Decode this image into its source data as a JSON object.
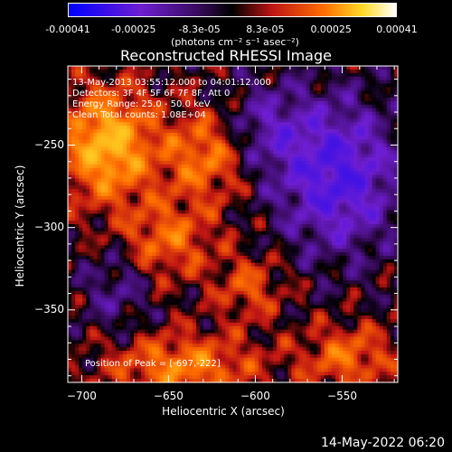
{
  "colorbar": {
    "tick_labels": [
      "-0.00041",
      "-0.00025",
      "-8.3e-05",
      "8.3e-05",
      "0.00025",
      "0.00041"
    ],
    "units": "(photons cm⁻² s⁻¹ asec⁻²)",
    "range": [
      -0.00041,
      0.00041
    ]
  },
  "annotations": {
    "line1": "13-May-2013 03:55:12.000 to 04:01:12.000",
    "line2": "Detectors: 3F 4F 5F 6F 7F 8F, Att 0",
    "line3": "Energy Range: 25.0 - 50.0 keV",
    "line4": "Clean    Total counts: 1.08E+04",
    "peak": "Position of Peak = [-697,-222]"
  },
  "footer": "14-May-2022 06:20",
  "colors": {
    "background": "#000000",
    "axes": "#ffffff"
  },
  "chart_data": {
    "type": "heatmap",
    "title": "Reconstructed RHESSI Image",
    "xlabel": "Heliocentric X (arcsec)",
    "ylabel": "Heliocentric Y (arcsec)",
    "xlim": [
      -708,
      -518
    ],
    "ylim": [
      -394,
      -202
    ],
    "xticks": [
      -700,
      -650,
      -600,
      -550
    ],
    "yticks": [
      -250,
      -300,
      -350
    ],
    "xtick_labels": [
      "−700",
      "−650",
      "−600",
      "−550"
    ],
    "ytick_labels": [
      "−250",
      "−300",
      "−350"
    ],
    "colormap": "blue-purple-black-red-yellow-white",
    "peak_position": [
      -697,
      -222
    ]
  }
}
